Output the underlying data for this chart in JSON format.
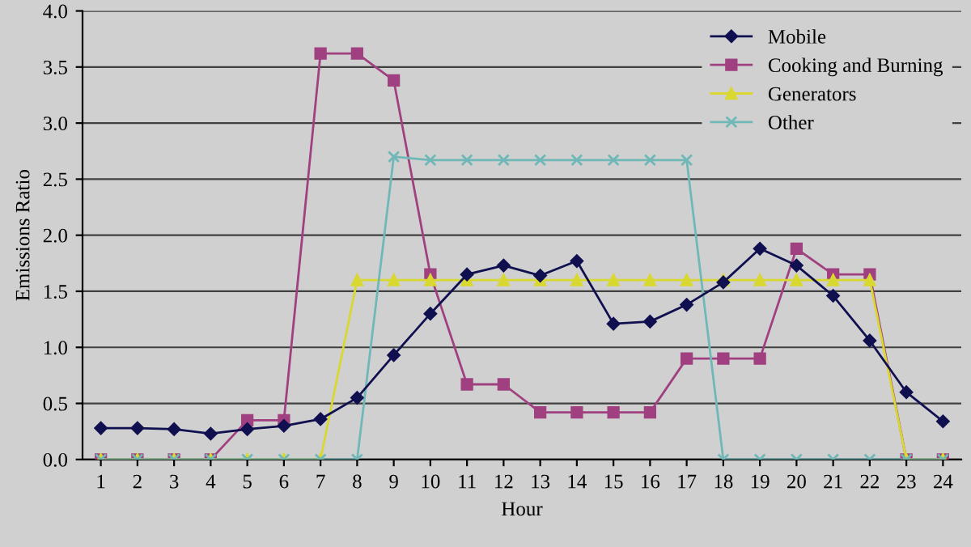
{
  "chart_data": {
    "type": "line",
    "xlabel": "Hour",
    "ylabel": "Emissions Ratio",
    "categories": [
      "1",
      "2",
      "3",
      "4",
      "5",
      "6",
      "7",
      "8",
      "9",
      "10",
      "11",
      "12",
      "13",
      "14",
      "15",
      "16",
      "17",
      "18",
      "19",
      "20",
      "21",
      "22",
      "23",
      "24"
    ],
    "series": [
      {
        "name": "Mobile",
        "color": "#101050",
        "marker": "diamond",
        "values": [
          0.28,
          0.28,
          0.27,
          0.23,
          0.27,
          0.3,
          0.36,
          0.55,
          0.93,
          1.3,
          1.65,
          1.73,
          1.64,
          1.77,
          1.21,
          1.23,
          1.38,
          1.58,
          1.88,
          1.73,
          1.46,
          1.06,
          0.6,
          0.34
        ]
      },
      {
        "name": "Cooking and Burning",
        "color": "#a04080",
        "marker": "square",
        "values": [
          0,
          0,
          0,
          0,
          0.35,
          0.35,
          3.62,
          3.62,
          3.38,
          1.65,
          0.67,
          0.67,
          0.42,
          0.42,
          0.42,
          0.42,
          0.9,
          0.9,
          0.9,
          1.88,
          1.65,
          1.65,
          0,
          0
        ]
      },
      {
        "name": "Generators",
        "color": "#d8d830",
        "marker": "triangle",
        "values": [
          0,
          0,
          0,
          0,
          0,
          0,
          0,
          1.6,
          1.6,
          1.6,
          1.6,
          1.6,
          1.6,
          1.6,
          1.6,
          1.6,
          1.6,
          1.6,
          1.6,
          1.6,
          1.6,
          1.6,
          0,
          0
        ]
      },
      {
        "name": "Other",
        "color": "#70b8b8",
        "marker": "cross",
        "values": [
          0,
          0,
          0,
          0,
          0,
          0,
          0,
          0,
          2.7,
          2.67,
          2.67,
          2.67,
          2.67,
          2.67,
          2.67,
          2.67,
          2.67,
          0,
          0,
          0,
          0,
          0,
          0,
          0
        ]
      }
    ],
    "ylim": [
      0,
      4
    ],
    "yticks": [
      {
        "value": 0,
        "label": "0.0"
      },
      {
        "value": 0.5,
        "label": "0.5"
      },
      {
        "value": 1,
        "label": "1.0"
      },
      {
        "value": 1.5,
        "label": "1.5"
      },
      {
        "value": 2,
        "label": "2.0"
      },
      {
        "value": 2.5,
        "label": "2.5"
      },
      {
        "value": 3,
        "label": "3.0"
      },
      {
        "value": 3.5,
        "label": "3.5"
      },
      {
        "value": 4,
        "label": "4.0"
      }
    ],
    "grid": "y",
    "legend": "top right",
    "line_style": "solid"
  }
}
